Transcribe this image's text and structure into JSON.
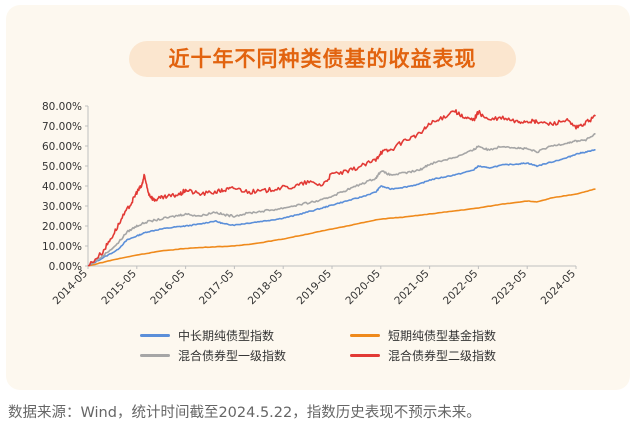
{
  "title": "近十年不同种类债基的收益表现",
  "source_note": "数据来源：Wind，统计时间截至2024.5.22，指数历史表现不预示未来。",
  "chart_data": {
    "type": "line",
    "title": "近十年不同种类债基的收益表现",
    "xlabel": "",
    "ylabel": "",
    "x_ticks": [
      "2014-05",
      "2015-05",
      "2016-05",
      "2017-05",
      "2018-05",
      "2019-05",
      "2020-05",
      "2021-05",
      "2022-05",
      "2023-05",
      "2024-05"
    ],
    "y_ticks": [
      "0.00%",
      "10.00%",
      "20.00%",
      "30.00%",
      "40.00%",
      "50.00%",
      "60.00%",
      "70.00%",
      "80.00%"
    ],
    "ylim": [
      0,
      80
    ],
    "grid": false,
    "legend_position": "bottom",
    "series": [
      {
        "name": "中长期纯债型指数",
        "color": "#5b8fd9",
        "points": [
          [
            0,
            0
          ],
          [
            0.3,
            4
          ],
          [
            0.6,
            8
          ],
          [
            0.8,
            13
          ],
          [
            1.0,
            15
          ],
          [
            1.2,
            17
          ],
          [
            1.5,
            18.5
          ],
          [
            1.8,
            19.5
          ],
          [
            2.0,
            20
          ],
          [
            2.3,
            21
          ],
          [
            2.6,
            22.5
          ],
          [
            2.8,
            21
          ],
          [
            3.0,
            20.5
          ],
          [
            3.3,
            21.5
          ],
          [
            3.6,
            22.5
          ],
          [
            3.9,
            23.5
          ],
          [
            4.2,
            25
          ],
          [
            4.5,
            27
          ],
          [
            4.8,
            29
          ],
          [
            5.0,
            30.5
          ],
          [
            5.3,
            32.5
          ],
          [
            5.6,
            34.5
          ],
          [
            5.9,
            37
          ],
          [
            6.0,
            40
          ],
          [
            6.2,
            38.5
          ],
          [
            6.5,
            39.5
          ],
          [
            6.8,
            41
          ],
          [
            7.0,
            43
          ],
          [
            7.3,
            44.5
          ],
          [
            7.6,
            46
          ],
          [
            7.9,
            48
          ],
          [
            8.0,
            50
          ],
          [
            8.2,
            49
          ],
          [
            8.5,
            50.5
          ],
          [
            8.8,
            51
          ],
          [
            9.0,
            51.5
          ],
          [
            9.2,
            50
          ],
          [
            9.5,
            52
          ],
          [
            9.8,
            54
          ],
          [
            10.0,
            56
          ],
          [
            10.2,
            57
          ],
          [
            10.4,
            58
          ]
        ]
      },
      {
        "name": "短期纯债型基金指数",
        "color": "#ef8a1c",
        "points": [
          [
            0,
            0
          ],
          [
            0.5,
            3
          ],
          [
            1.0,
            5.5
          ],
          [
            1.5,
            7.5
          ],
          [
            2.0,
            8.8
          ],
          [
            2.5,
            9.5
          ],
          [
            3.0,
            10
          ],
          [
            3.5,
            11.5
          ],
          [
            4.0,
            13.5
          ],
          [
            4.5,
            16
          ],
          [
            5.0,
            18.5
          ],
          [
            5.5,
            21
          ],
          [
            6.0,
            23.5
          ],
          [
            6.5,
            24.5
          ],
          [
            7.0,
            26
          ],
          [
            7.5,
            27.5
          ],
          [
            8.0,
            29
          ],
          [
            8.5,
            31
          ],
          [
            9.0,
            32.5
          ],
          [
            9.2,
            32
          ],
          [
            9.5,
            34
          ],
          [
            10.0,
            36
          ],
          [
            10.4,
            38.5
          ]
        ]
      },
      {
        "name": "混合债券型一级指数",
        "color": "#a6a6a6",
        "points": [
          [
            0,
            0
          ],
          [
            0.3,
            5
          ],
          [
            0.6,
            11
          ],
          [
            0.8,
            17
          ],
          [
            1.0,
            20
          ],
          [
            1.2,
            22
          ],
          [
            1.5,
            23.5
          ],
          [
            1.8,
            25
          ],
          [
            2.0,
            26
          ],
          [
            2.3,
            25
          ],
          [
            2.6,
            27
          ],
          [
            2.8,
            25.5
          ],
          [
            3.0,
            25
          ],
          [
            3.3,
            26.5
          ],
          [
            3.6,
            27.5
          ],
          [
            3.9,
            28.5
          ],
          [
            4.2,
            30
          ],
          [
            4.5,
            31.5
          ],
          [
            4.8,
            33
          ],
          [
            5.0,
            35
          ],
          [
            5.3,
            38
          ],
          [
            5.6,
            41
          ],
          [
            5.9,
            44
          ],
          [
            6.0,
            47.5
          ],
          [
            6.2,
            45.5
          ],
          [
            6.5,
            46.5
          ],
          [
            6.8,
            48
          ],
          [
            7.0,
            51
          ],
          [
            7.3,
            53
          ],
          [
            7.6,
            55
          ],
          [
            7.9,
            58
          ],
          [
            8.0,
            60
          ],
          [
            8.2,
            58
          ],
          [
            8.5,
            60
          ],
          [
            8.8,
            59
          ],
          [
            9.0,
            58.5
          ],
          [
            9.2,
            57
          ],
          [
            9.5,
            60
          ],
          [
            9.8,
            61.5
          ],
          [
            10.0,
            62.5
          ],
          [
            10.2,
            63
          ],
          [
            10.4,
            66
          ]
        ]
      },
      {
        "name": "混合债券型二级指数",
        "color": "#e23a35",
        "points": [
          [
            0,
            0
          ],
          [
            0.3,
            7
          ],
          [
            0.5,
            15
          ],
          [
            0.7,
            24
          ],
          [
            0.9,
            32
          ],
          [
            1.0,
            37
          ],
          [
            1.1,
            40
          ],
          [
            1.15,
            45
          ],
          [
            1.25,
            36
          ],
          [
            1.35,
            33
          ],
          [
            1.5,
            34
          ],
          [
            1.7,
            35
          ],
          [
            1.9,
            36
          ],
          [
            2.0,
            38
          ],
          [
            2.3,
            36
          ],
          [
            2.6,
            37
          ],
          [
            2.8,
            38
          ],
          [
            3.0,
            39
          ],
          [
            3.3,
            37
          ],
          [
            3.6,
            37.5
          ],
          [
            3.9,
            39
          ],
          [
            4.2,
            39.5
          ],
          [
            4.5,
            42
          ],
          [
            4.8,
            40.5
          ],
          [
            5.0,
            46
          ],
          [
            5.3,
            47
          ],
          [
            5.6,
            50
          ],
          [
            5.9,
            53
          ],
          [
            6.0,
            57
          ],
          [
            6.2,
            58
          ],
          [
            6.5,
            63
          ],
          [
            6.8,
            66
          ],
          [
            7.0,
            71
          ],
          [
            7.2,
            73
          ],
          [
            7.5,
            78
          ],
          [
            7.7,
            74
          ],
          [
            7.9,
            73
          ],
          [
            8.0,
            77
          ],
          [
            8.2,
            73
          ],
          [
            8.5,
            74
          ],
          [
            8.8,
            72
          ],
          [
            9.0,
            72.5
          ],
          [
            9.2,
            72
          ],
          [
            9.5,
            71
          ],
          [
            9.8,
            73
          ],
          [
            10.0,
            69
          ],
          [
            10.2,
            71.5
          ],
          [
            10.4,
            75
          ]
        ]
      }
    ]
  }
}
